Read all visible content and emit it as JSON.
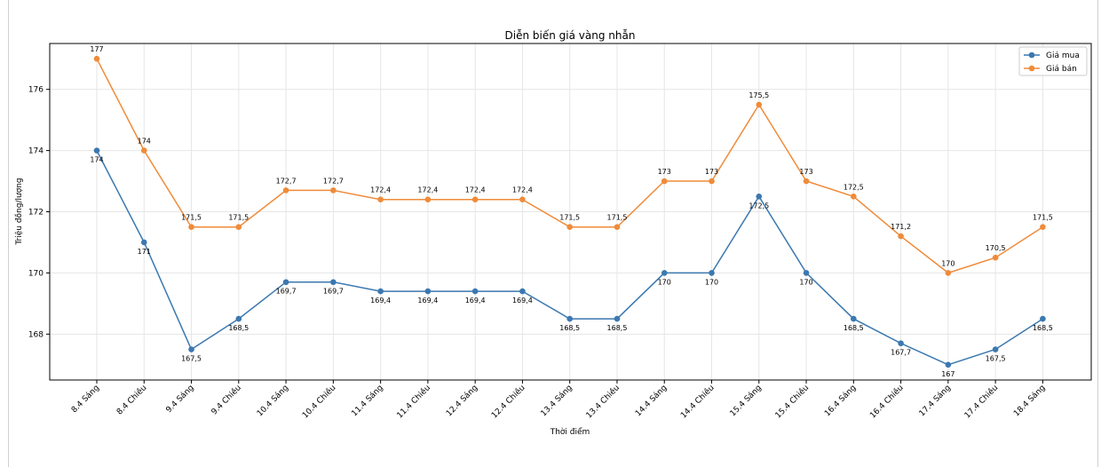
{
  "chart_data": {
    "type": "line",
    "title": "Diễn biến giá vàng nhẫn",
    "xlabel": "Thời điểm",
    "ylabel": "Triệu đồng/lượng",
    "ylim": [
      166.5,
      177.5
    ],
    "yticks": [
      "168",
      "170",
      "172",
      "174",
      "176"
    ],
    "grid": true,
    "legend_position": "top-right",
    "categories": [
      "8.4 Sáng",
      "8.4 Chiều",
      "9.4 Sáng",
      "9.4 Chiều",
      "10.4 Sáng",
      "10.4 Chiều",
      "11.4 Sáng",
      "11.4 Chiều",
      "12.4 Sáng",
      "12.4 Chiều",
      "13.4 Sáng",
      "13.4 Chiều",
      "14.4 Sáng",
      "14.4 Chiều",
      "15.4 Sáng",
      "15.4 Chiều",
      "16.4 Sáng",
      "16.4 Chiều",
      "17.4 Sáng",
      "17.4 Chiều",
      "18.4 Sáng"
    ],
    "series": [
      {
        "name": "Giá mua",
        "color": "#3b78b0",
        "label_position": "below",
        "values": [
          174,
          171,
          167.5,
          168.5,
          169.7,
          169.7,
          169.4,
          169.4,
          169.4,
          169.4,
          168.5,
          168.5,
          170,
          170,
          172.5,
          170,
          168.5,
          167.7,
          167,
          167.5,
          168.5
        ],
        "labels": [
          "174",
          "171",
          "167,5",
          "168,5",
          "169,7",
          "169,7",
          "169,4",
          "169,4",
          "169,4",
          "169,4",
          "168,5",
          "168,5",
          "170",
          "170",
          "172,5",
          "170",
          "168,5",
          "167,7",
          "167",
          "167,5",
          "168,5"
        ]
      },
      {
        "name": "Giá bán",
        "color": "#ef8b3a",
        "label_position": "above",
        "values": [
          177,
          174,
          171.5,
          171.5,
          172.7,
          172.7,
          172.4,
          172.4,
          172.4,
          172.4,
          171.5,
          171.5,
          173,
          173,
          175.5,
          173,
          172.5,
          171.2,
          170,
          170.5,
          171.5
        ],
        "labels": [
          "177",
          "174",
          "171,5",
          "171,5",
          "172,7",
          "172,7",
          "172,4",
          "172,4",
          "172,4",
          "172,4",
          "171,5",
          "171,5",
          "173",
          "173",
          "175,5",
          "173",
          "172,5",
          "171,2",
          "170",
          "170,5",
          "171,5"
        ]
      }
    ]
  }
}
